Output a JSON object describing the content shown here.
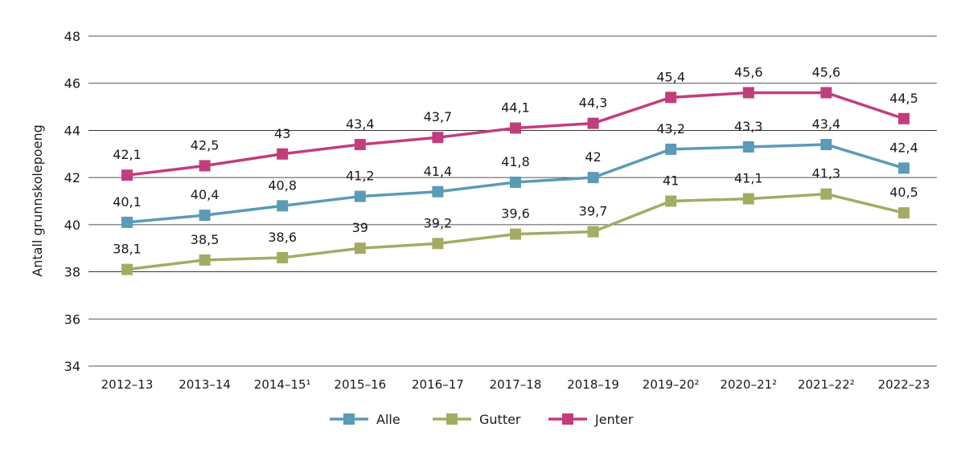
{
  "chart_data": {
    "type": "line",
    "title": "",
    "xlabel": "",
    "ylabel": "Antall grunnskolepoeng",
    "ylim": [
      34,
      48
    ],
    "yticks": [
      34,
      36,
      38,
      40,
      42,
      44,
      46,
      48
    ],
    "grid": true,
    "legend_position": "bottom",
    "categories": [
      "2012–13",
      "2013–14",
      "2014–15¹",
      "2015–16",
      "2016–17",
      "2017–18",
      "2018–19",
      "2019–20²",
      "2020–21²",
      "2021–22²",
      "2022–23"
    ],
    "series": [
      {
        "name": "Alle",
        "color": "#5b9bb7",
        "values": [
          40.1,
          40.4,
          40.8,
          41.2,
          41.4,
          41.8,
          42,
          43.2,
          43.3,
          43.4,
          42.4
        ],
        "labels": [
          "40,1",
          "40,4",
          "40,8",
          "41,2",
          "41,4",
          "41,8",
          "42",
          "43,2",
          "43,3",
          "43,4",
          "42,4"
        ]
      },
      {
        "name": "Gutter",
        "color": "#a4ab63",
        "values": [
          38.1,
          38.5,
          38.6,
          39,
          39.2,
          39.6,
          39.7,
          41,
          41.1,
          41.3,
          40.5
        ],
        "labels": [
          "38,1",
          "38,5",
          "38,6",
          "39",
          "39,2",
          "39,6",
          "39,7",
          "41",
          "41,1",
          "41,3",
          "40,5"
        ]
      },
      {
        "name": "Jenter",
        "color": "#c13e7c",
        "values": [
          42.1,
          42.5,
          43,
          43.4,
          43.7,
          44.1,
          44.3,
          45.4,
          45.6,
          45.6,
          44.5
        ],
        "labels": [
          "42,1",
          "42,5",
          "43",
          "43,4",
          "43,7",
          "44,1",
          "44,3",
          "45,4",
          "45,6",
          "45,6",
          "44,5"
        ]
      }
    ]
  }
}
